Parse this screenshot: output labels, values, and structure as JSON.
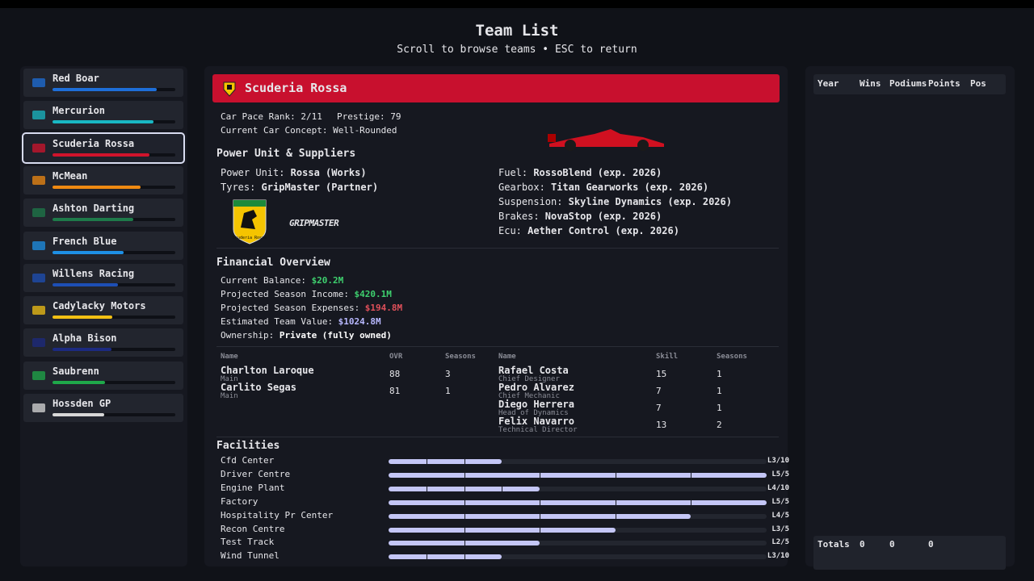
{
  "header": {
    "title": "Team List",
    "subtitle": "Scroll to browse teams • ESC to return"
  },
  "teams": [
    {
      "name": "Red Boar",
      "rating": 85,
      "color": "#1e6fd9"
    },
    {
      "name": "Mercurion",
      "rating": 82,
      "color": "#19b8c4"
    },
    {
      "name": "Scuderia Rossa",
      "rating": 79,
      "color": "#d0142c"
    },
    {
      "name": "McMean",
      "rating": 72,
      "color": "#f08a12"
    },
    {
      "name": "Ashton Darting",
      "rating": 66,
      "color": "#1e7a4a"
    },
    {
      "name": "French Blue",
      "rating": 58,
      "color": "#1e90e6"
    },
    {
      "name": "Willens Racing",
      "rating": 53,
      "color": "#1d4fb5"
    },
    {
      "name": "Cadylacky Motors",
      "rating": 49,
      "color": "#f2c014"
    },
    {
      "name": "Alpha Bison",
      "rating": 48,
      "color": "#1c2a80"
    },
    {
      "name": "Saubrenn",
      "rating": 43,
      "color": "#1fa84a"
    },
    {
      "name": "Hossden GP",
      "rating": 42,
      "color": "#d8d8d8"
    }
  ],
  "selected": {
    "name": "Scuderia Rossa",
    "pace_rank": "Car Pace Rank: 2/11",
    "prestige": "Prestige: 79",
    "concept": "Current Car Concept: Well-Rounded",
    "suppliers_title": "Power Unit & Suppliers",
    "suppliers_left": [
      {
        "label": "Power Unit:",
        "value": "Rossa (Works)"
      },
      {
        "label": "Tyres:",
        "value": "GripMaster (Partner)"
      }
    ],
    "suppliers_right": [
      {
        "label": "Fuel:",
        "value": "RossoBlend (exp. 2026)"
      },
      {
        "label": "Gearbox:",
        "value": "Titan Gearworks (exp. 2026)"
      },
      {
        "label": "Suspension:",
        "value": "Skyline Dynamics (exp. 2026)"
      },
      {
        "label": "Brakes:",
        "value": "NovaStop (exp. 2026)"
      },
      {
        "label": "Ecu:",
        "value": "Aether Control (exp. 2026)"
      }
    ],
    "tyre_logo": "GRIPMASTER",
    "finance_title": "Financial Overview",
    "finance": [
      {
        "label": "Current Balance:",
        "value": "$20.2M",
        "color": "#3ecf6e"
      },
      {
        "label": "Projected Season Income:",
        "value": "$420.1M",
        "color": "#3ecf6e"
      },
      {
        "label": "Projected Season Expenses:",
        "value": "$194.8M",
        "color": "#e0505a"
      },
      {
        "label": "Estimated Team Value:",
        "value": "$1024.8M",
        "color": "#b8b8ff"
      },
      {
        "label": "Ownership:",
        "value": "Private (fully owned)",
        "color": "#ffffff"
      }
    ],
    "driver_headers": [
      "Name",
      "OVR",
      "Seasons"
    ],
    "drivers": [
      {
        "name": "Charlton Laroque",
        "role": "Main",
        "ovr": 88,
        "seasons": 3
      },
      {
        "name": "Carlito Segas",
        "role": "Main",
        "ovr": 81,
        "seasons": 1
      }
    ],
    "staff_headers": [
      "Name",
      "Skill",
      "Seasons"
    ],
    "staff": [
      {
        "name": "Rafael Costa",
        "role": "Chief Designer",
        "skill": 15,
        "seasons": 1
      },
      {
        "name": "Pedro Alvarez",
        "role": "Chief Mechanic",
        "skill": 7,
        "seasons": 1
      },
      {
        "name": "Diego Herrera",
        "role": "Head of Dynamics",
        "skill": 7,
        "seasons": 1
      },
      {
        "name": "Felix Navarro",
        "role": "Technical Director",
        "skill": 13,
        "seasons": 2
      }
    ],
    "facilities_title": "Facilities",
    "facilities": [
      {
        "name": "Cfd Center",
        "level": 3,
        "max": 10,
        "label": "L3/10"
      },
      {
        "name": "Driver Centre",
        "level": 5,
        "max": 5,
        "label": "L5/5"
      },
      {
        "name": "Engine Plant",
        "level": 4,
        "max": 10,
        "label": "L4/10"
      },
      {
        "name": "Factory",
        "level": 5,
        "max": 5,
        "label": "L5/5"
      },
      {
        "name": "Hospitality Pr Center",
        "level": 4,
        "max": 5,
        "label": "L4/5"
      },
      {
        "name": "Recon Centre",
        "level": 3,
        "max": 5,
        "label": "L3/5"
      },
      {
        "name": "Test Track",
        "level": 2,
        "max": 5,
        "label": "L2/5"
      },
      {
        "name": "Wind Tunnel",
        "level": 3,
        "max": 10,
        "label": "L3/10"
      }
    ]
  },
  "history": {
    "headers": [
      "Year",
      "Wins",
      "Podiums",
      "Points",
      "Pos"
    ],
    "totals_label": "Totals",
    "totals": [
      0,
      0,
      0
    ]
  }
}
